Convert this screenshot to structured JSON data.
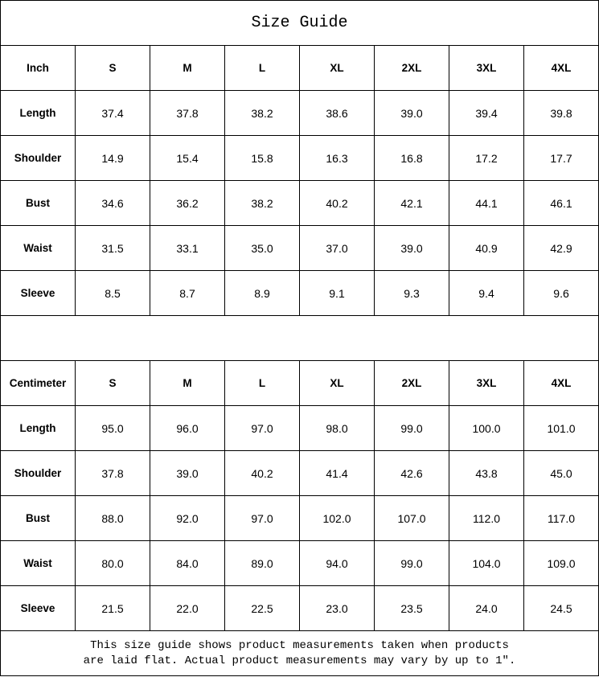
{
  "title": "Size Guide",
  "sizes": [
    "S",
    "M",
    "L",
    "XL",
    "2XL",
    "3XL",
    "4XL"
  ],
  "tables": [
    {
      "unit": "Inch",
      "rows": [
        {
          "label": "Length",
          "values": [
            "37.4",
            "37.8",
            "38.2",
            "38.6",
            "39.0",
            "39.4",
            "39.8"
          ]
        },
        {
          "label": "Shoulder",
          "values": [
            "14.9",
            "15.4",
            "15.8",
            "16.3",
            "16.8",
            "17.2",
            "17.7"
          ]
        },
        {
          "label": "Bust",
          "values": [
            "34.6",
            "36.2",
            "38.2",
            "40.2",
            "42.1",
            "44.1",
            "46.1"
          ]
        },
        {
          "label": "Waist",
          "values": [
            "31.5",
            "33.1",
            "35.0",
            "37.0",
            "39.0",
            "40.9",
            "42.9"
          ]
        },
        {
          "label": "Sleeve",
          "values": [
            "8.5",
            "8.7",
            "8.9",
            "9.1",
            "9.3",
            "9.4",
            "9.6"
          ]
        }
      ]
    },
    {
      "unit": "Centimeter",
      "rows": [
        {
          "label": "Length",
          "values": [
            "95.0",
            "96.0",
            "97.0",
            "98.0",
            "99.0",
            "100.0",
            "101.0"
          ]
        },
        {
          "label": "Shoulder",
          "values": [
            "37.8",
            "39.0",
            "40.2",
            "41.4",
            "42.6",
            "43.8",
            "45.0"
          ]
        },
        {
          "label": "Bust",
          "values": [
            "88.0",
            "92.0",
            "97.0",
            "102.0",
            "107.0",
            "112.0",
            "117.0"
          ]
        },
        {
          "label": "Waist",
          "values": [
            "80.0",
            "84.0",
            "89.0",
            "94.0",
            "99.0",
            "104.0",
            "109.0"
          ]
        },
        {
          "label": "Sleeve",
          "values": [
            "21.5",
            "22.0",
            "22.5",
            "23.0",
            "23.5",
            "24.0",
            "24.5"
          ]
        }
      ]
    }
  ],
  "note_line1": "This size guide shows product measurements taken when products",
  "note_line2": "are laid flat. Actual product measurements may vary by up to 1″."
}
